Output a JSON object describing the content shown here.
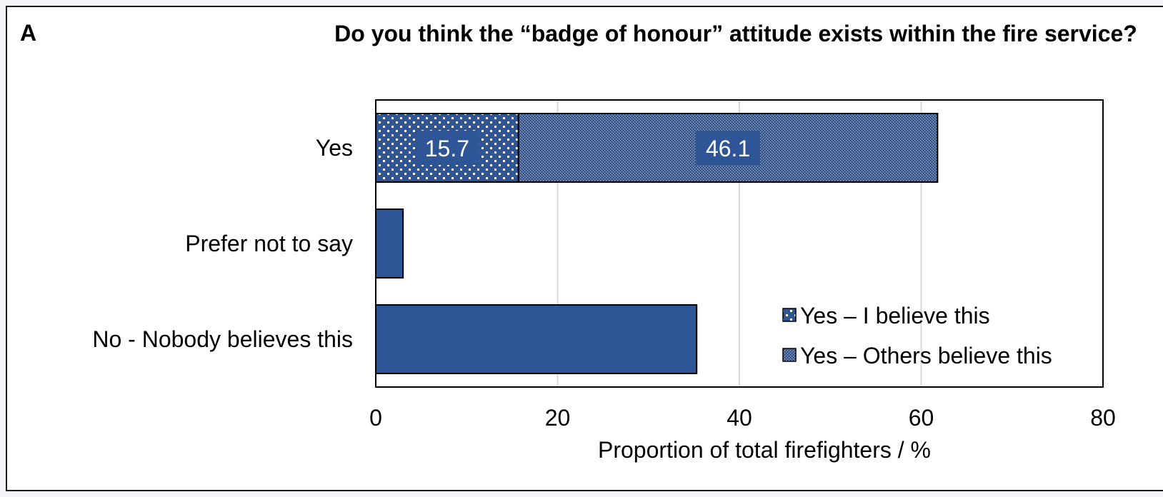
{
  "panel": {
    "label": "A"
  },
  "chart_data": {
    "type": "bar",
    "orientation": "horizontal",
    "stacked": true,
    "title": "Do you think the “badge of honour” attitude exists within the fire service?",
    "xlabel": "Proportion of total firefighters / %",
    "ylabel": "",
    "xlim": [
      0,
      80
    ],
    "xticks": [
      "0",
      "20",
      "40",
      "60",
      "80"
    ],
    "categories": [
      "Yes",
      "Prefer not to say",
      "No - Nobody believes this"
    ],
    "series": [
      {
        "name": "Yes – I believe this",
        "values": [
          15.7,
          3.0,
          35.3
        ],
        "data_labels": [
          "15.7",
          "",
          ""
        ],
        "pattern": "sparse-dots"
      },
      {
        "name": "Yes – Others believe this",
        "values": [
          46.1,
          0,
          0
        ],
        "data_labels": [
          "46.1",
          "",
          ""
        ],
        "pattern": "fine-dots"
      }
    ],
    "grid": "vertical",
    "legend_position": "bottom-right",
    "colors": {
      "bar": "#2e5596",
      "outline": "#000000",
      "grid": "#d9d9d9",
      "label_box": "#2e5596",
      "label_text": "#ffffff"
    }
  }
}
